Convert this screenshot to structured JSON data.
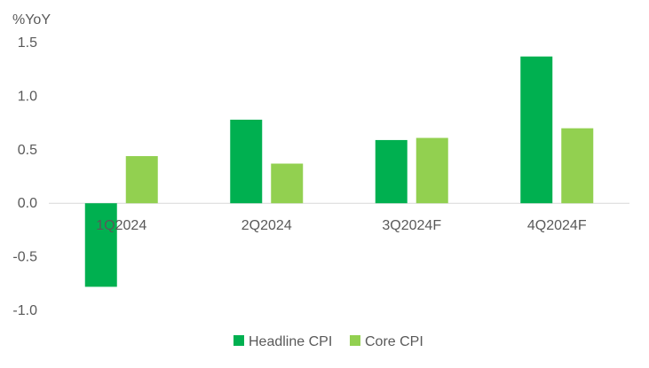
{
  "chart_data": {
    "type": "bar",
    "title": "",
    "ylabel": "%YoY",
    "xlabel": "",
    "categories": [
      "1Q2024",
      "2Q2024",
      "3Q2024F",
      "4Q2024F"
    ],
    "series": [
      {
        "name": "Headline CPI",
        "color": "#00b050",
        "values": [
          -0.78,
          0.78,
          0.59,
          1.37
        ]
      },
      {
        "name": "Core CPI",
        "color": "#92d050",
        "values": [
          0.44,
          0.37,
          0.61,
          0.7
        ]
      }
    ],
    "ylim": [
      -1.0,
      1.5
    ],
    "yticks": [
      "1.5",
      "1.0",
      "0.5",
      "0.0",
      "-0.5",
      "-1.0"
    ],
    "grid": false,
    "legend": "bottom-center"
  }
}
